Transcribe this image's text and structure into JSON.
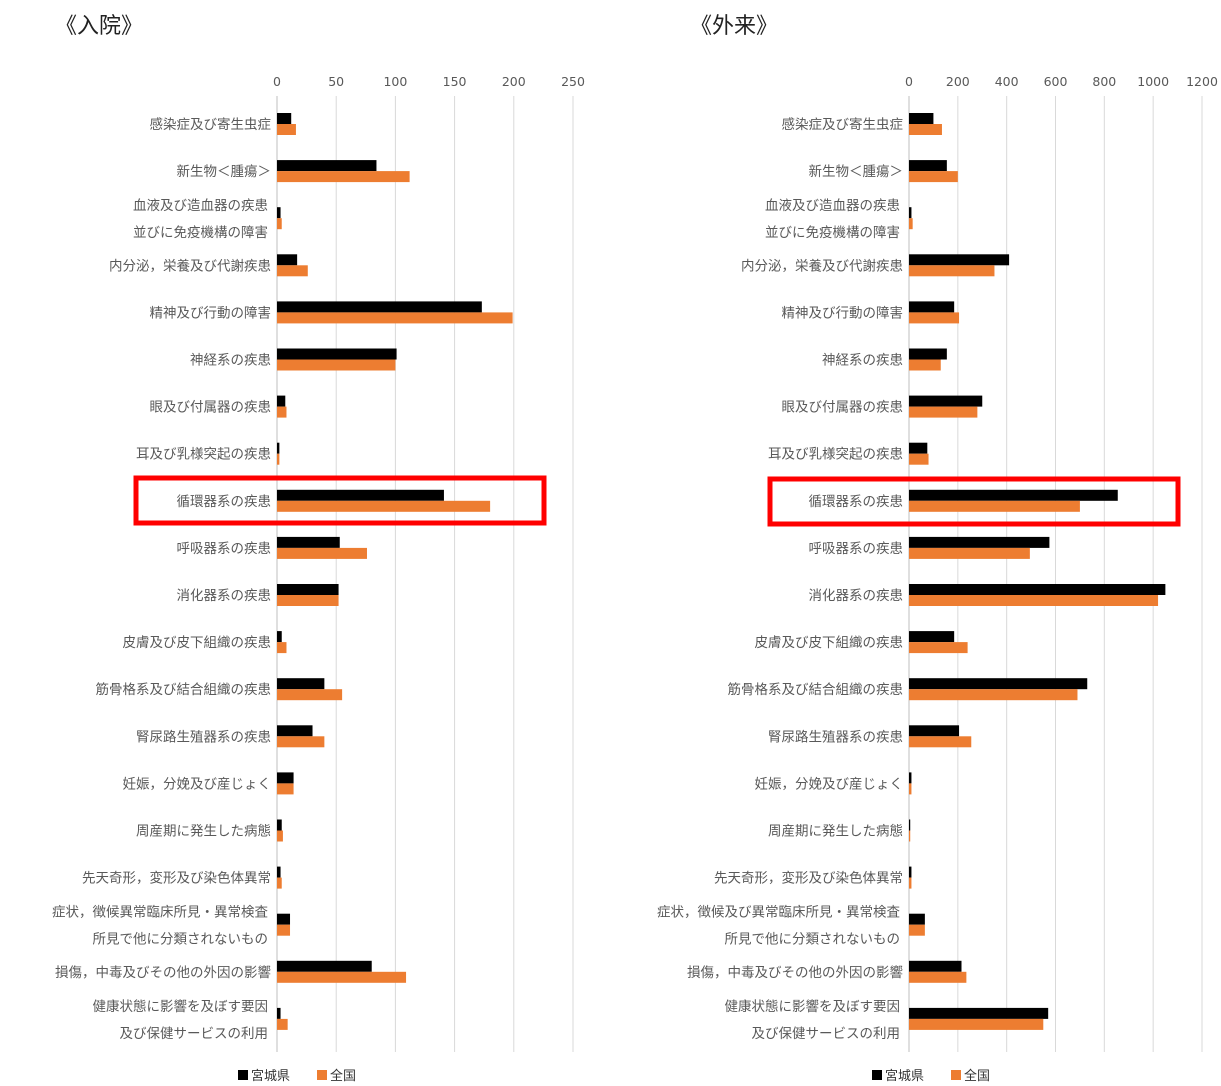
{
  "colors": {
    "series1": "#000000",
    "series2": "#ed7d31",
    "highlight": "#ff0000",
    "grid": "#d9d9d9",
    "label": "#595959"
  },
  "chart_data": [
    {
      "type": "bar",
      "orientation": "horizontal",
      "title": "《入院》",
      "xlim": [
        0,
        250
      ],
      "ticks": [
        "0",
        "50",
        "100",
        "150",
        "200",
        "250"
      ],
      "grid": true,
      "legend_position": "bottom",
      "highlighted_category_index": 8,
      "categories": [
        [
          "感染症及び寄生虫症"
        ],
        [
          "新生物＜腫瘍＞"
        ],
        [
          "血液及び造血器の疾患",
          "並びに免疫機構の障害"
        ],
        [
          "内分泌，栄養及び代謝疾患"
        ],
        [
          "精神及び行動の障害"
        ],
        [
          "神経系の疾患"
        ],
        [
          "眼及び付属器の疾患"
        ],
        [
          "耳及び乳様突起の疾患"
        ],
        [
          "循環器系の疾患"
        ],
        [
          "呼吸器系の疾患"
        ],
        [
          "消化器系の疾患"
        ],
        [
          "皮膚及び皮下組織の疾患"
        ],
        [
          "筋骨格系及び結合組織の疾患"
        ],
        [
          "腎尿路生殖器系の疾患"
        ],
        [
          "妊娠，分娩及び産じょく"
        ],
        [
          "周産期に発生した病態"
        ],
        [
          "先天奇形，変形及び染色体異常"
        ],
        [
          "症状，徴候異常臨床所見・異常検査",
          "所見で他に分類されないもの"
        ],
        [
          "損傷，中毒及びその他の外因の影響"
        ],
        [
          "健康状態に影響を及ぼす要因",
          "及び保健サービスの利用"
        ]
      ],
      "series": [
        {
          "name": "宮城県",
          "values": [
            12,
            84,
            3,
            17,
            173,
            101,
            7,
            2,
            141,
            53,
            52,
            4,
            40,
            30,
            14,
            4,
            3,
            11,
            80,
            3
          ]
        },
        {
          "name": "全国",
          "values": [
            16,
            112,
            4,
            26,
            199,
            100,
            8,
            2,
            180,
            76,
            52,
            8,
            55,
            40,
            14,
            5,
            4,
            11,
            109,
            9
          ]
        }
      ]
    },
    {
      "type": "bar",
      "orientation": "horizontal",
      "title": "《外来》",
      "xlim": [
        0,
        1200
      ],
      "ticks": [
        "0",
        "200",
        "400",
        "600",
        "800",
        "1000",
        "1200"
      ],
      "grid": true,
      "legend_position": "bottom",
      "highlighted_category_index": 8,
      "categories": [
        [
          "感染症及び寄生虫症"
        ],
        [
          "新生物＜腫瘍＞"
        ],
        [
          "血液及び造血器の疾患",
          "並びに免疫機構の障害"
        ],
        [
          "内分泌，栄養及び代謝疾患"
        ],
        [
          "精神及び行動の障害"
        ],
        [
          "神経系の疾患"
        ],
        [
          "眼及び付属器の疾患"
        ],
        [
          "耳及び乳様突起の疾患"
        ],
        [
          "循環器系の疾患"
        ],
        [
          "呼吸器系の疾患"
        ],
        [
          "消化器系の疾患"
        ],
        [
          "皮膚及び皮下組織の疾患"
        ],
        [
          "筋骨格系及び結合組織の疾患"
        ],
        [
          "腎尿路生殖器系の疾患"
        ],
        [
          "妊娠，分娩及び産じょく"
        ],
        [
          "周産期に発生した病態"
        ],
        [
          "先天奇形，変形及び染色体異常"
        ],
        [
          "症状，徴候及び異常臨床所見・異常検査",
          "所見で他に分類されないもの"
        ],
        [
          "損傷，中毒及びその他の外因の影響"
        ],
        [
          "健康状態に影響を及ぼす要因",
          "及び保健サービスの利用"
        ]
      ],
      "series": [
        {
          "name": "宮城県",
          "values": [
            100,
            155,
            10,
            410,
            185,
            155,
            300,
            75,
            855,
            575,
            1050,
            185,
            730,
            205,
            10,
            5,
            10,
            65,
            215,
            570
          ]
        },
        {
          "name": "全国",
          "values": [
            135,
            200,
            15,
            350,
            205,
            130,
            280,
            80,
            700,
            495,
            1020,
            240,
            690,
            255,
            10,
            5,
            10,
            65,
            235,
            550
          ]
        }
      ]
    }
  ]
}
